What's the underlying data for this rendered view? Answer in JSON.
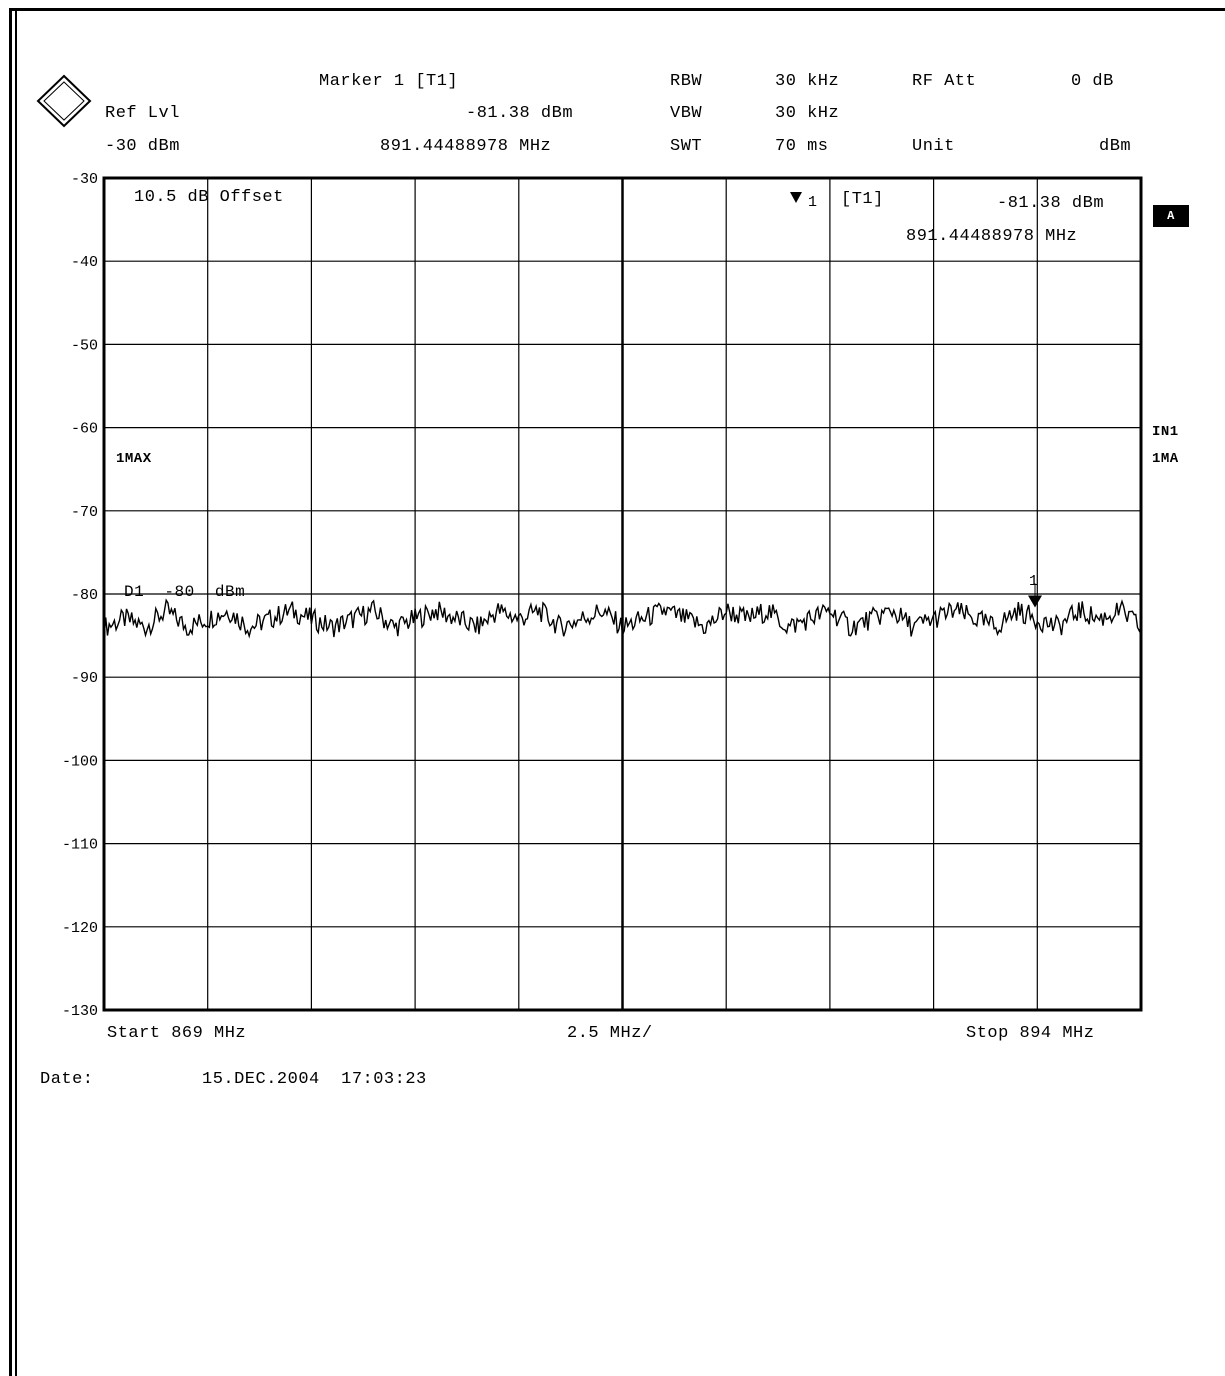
{
  "header": {
    "marker_label": "Marker 1 [T1]",
    "ref_lvl_label": "Ref Lvl",
    "ref_lvl_value": "-30 dBm",
    "marker_level": "-81.38 dBm",
    "marker_freq": "891.44488978 MHz",
    "rbw_label": "RBW",
    "rbw_value": "30 kHz",
    "vbw_label": "VBW",
    "vbw_value": "30 kHz",
    "swt_label": "SWT",
    "swt_value": "70 ms",
    "rfatt_label": "RF Att",
    "rfatt_value": "0 dB",
    "unit_label": "Unit",
    "unit_value": "dBm"
  },
  "plot_labels": {
    "offset": "10.5 dB Offset",
    "trace_mode": "1MAX",
    "marker_box_id": "1",
    "marker_box_tag": "[T1]",
    "marker_box_level": "-81.38 dBm",
    "marker_box_freq": "891.44488978 MHz",
    "display_line": "D1  -80  dBm",
    "marker_number": "1"
  },
  "side_labels": {
    "a_box": "A",
    "in1": "IN1",
    "ma1": "1MA"
  },
  "footer": {
    "start": "Start 869 MHz",
    "span_per_div": "2.5 MHz/",
    "stop": "Stop 894 MHz",
    "date_label": "Date:",
    "date_value": "15.DEC.2004  17:03:23"
  },
  "chart_data": {
    "type": "line",
    "x_unit": "MHz",
    "y_unit": "dBm",
    "xlim": [
      869,
      894
    ],
    "ylim": [
      -130,
      -30
    ],
    "yticks": [
      -30,
      -40,
      -50,
      -60,
      -70,
      -80,
      -90,
      -100,
      -110,
      -120,
      -130
    ],
    "grid": true,
    "display_line_dbm": -80,
    "marker": {
      "x": 891.44488978,
      "y": -81.38
    },
    "series": [
      {
        "x": [
          869.0,
          869.5,
          870.0,
          870.5,
          871.0,
          871.5,
          872.0,
          872.5,
          873.0,
          873.5,
          874.0,
          874.5,
          875.0,
          875.5,
          876.0,
          876.5,
          877.0,
          877.5,
          878.0,
          878.5,
          879.0,
          879.5,
          880.0,
          880.5,
          881.0,
          881.5,
          882.0,
          882.5,
          883.0,
          883.5,
          884.0,
          884.5,
          885.0,
          885.5,
          886.0,
          886.5,
          887.0,
          887.5,
          888.0,
          888.5,
          889.0,
          889.5,
          890.0,
          890.5,
          891.0,
          891.5,
          892.0,
          892.5,
          893.0,
          893.5,
          894.0
        ],
        "values": [
          -84,
          -83,
          -84,
          -82,
          -84,
          -83,
          -82,
          -84,
          -83,
          -82,
          -83,
          -84,
          -83,
          -82,
          -84,
          -83,
          -82,
          -83,
          -84,
          -82,
          -83,
          -82,
          -84,
          -83,
          -82,
          -84,
          -83,
          -82,
          -83,
          -84,
          -82,
          -83,
          -82,
          -84,
          -83,
          -82,
          -84,
          -83,
          -82,
          -84,
          -83,
          -82,
          -83,
          -84,
          -82,
          -83,
          -84,
          -82,
          -83,
          -82,
          -84
        ]
      }
    ]
  }
}
